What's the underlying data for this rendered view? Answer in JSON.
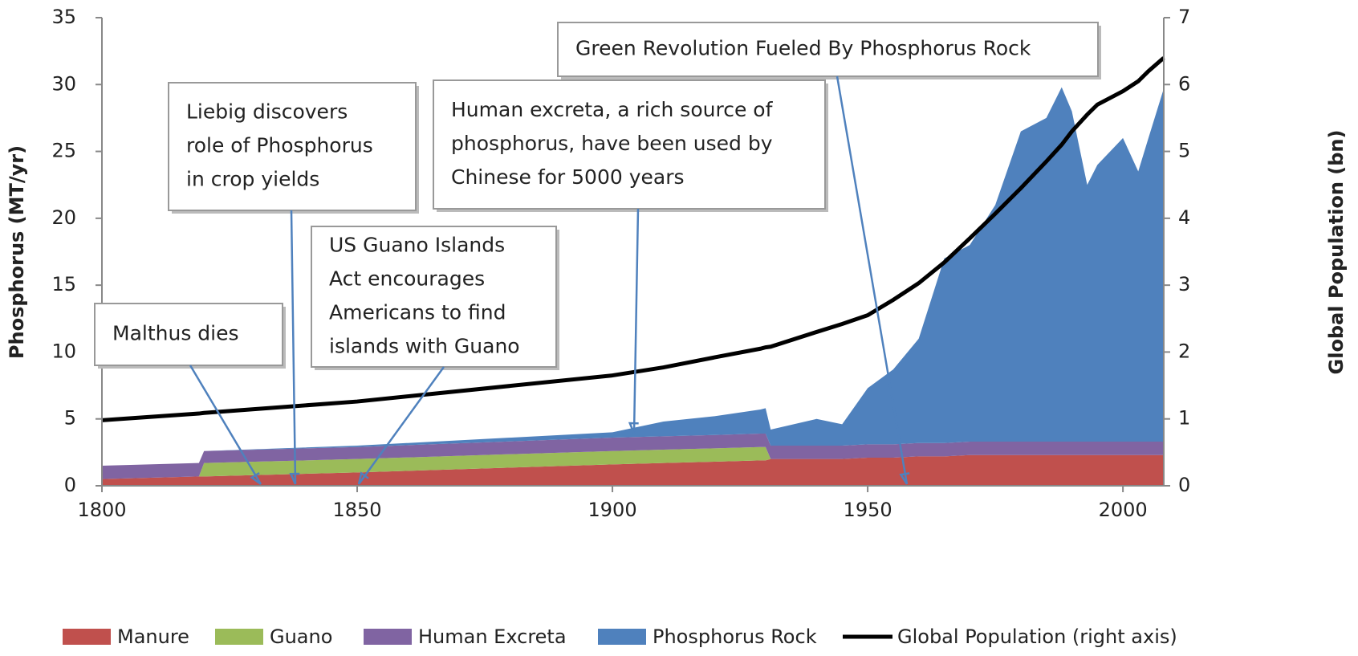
{
  "chart_data": {
    "type": "stacked-area",
    "y_label": "Phosphorus (MT/yr)",
    "y2_label": "Global Population (bn)",
    "x": [
      1800,
      1819,
      1820,
      1850,
      1900,
      1910,
      1920,
      1929,
      1930,
      1931,
      1940,
      1945,
      1950,
      1955,
      1960,
      1965,
      1970,
      1975,
      1980,
      1985,
      1988,
      1990,
      1993,
      1995,
      2000,
      2003,
      2005,
      2008
    ],
    "series": [
      {
        "name": "Manure",
        "color": "#c0504d",
        "values": [
          0.5,
          0.7,
          0.7,
          1.0,
          1.6,
          1.7,
          1.8,
          1.9,
          1.9,
          2.0,
          2.0,
          2.0,
          2.1,
          2.1,
          2.2,
          2.2,
          2.3,
          2.3,
          2.3,
          2.3,
          2.3,
          2.3,
          2.3,
          2.3,
          2.3,
          2.3,
          2.3,
          2.3
        ]
      },
      {
        "name": "Guano",
        "color": "#9bbb59",
        "values": [
          0,
          0,
          1.0,
          1.0,
          1.0,
          1.0,
          1.0,
          1.0,
          1.0,
          0,
          0,
          0,
          0,
          0,
          0,
          0,
          0,
          0,
          0,
          0,
          0,
          0,
          0,
          0,
          0,
          0,
          0,
          0
        ]
      },
      {
        "name": "Human Excreta",
        "color": "#8064a2",
        "values": [
          1.0,
          1.0,
          0.9,
          0.9,
          1.0,
          1.0,
          1.0,
          1.0,
          1.0,
          1.0,
          1.0,
          1.0,
          1.0,
          1.0,
          1.0,
          1.0,
          1.0,
          1.0,
          1.0,
          1.0,
          1.0,
          1.0,
          1.0,
          1.0,
          1.0,
          1.0,
          1.0,
          1.0
        ]
      },
      {
        "name": "Phosphorus Rock",
        "color": "#4f81bd",
        "values": [
          0,
          0,
          0,
          0.1,
          0.4,
          1.1,
          1.4,
          1.8,
          1.9,
          1.2,
          2.0,
          1.6,
          4.2,
          5.6,
          7.8,
          13.8,
          14.7,
          17.7,
          23.2,
          24.2,
          26.5,
          24.7,
          19.2,
          20.7,
          22.7,
          20.2,
          22.7,
          26.4
        ]
      },
      {
        "name": "Global Population (right axis)",
        "color": "#000000",
        "axis": "y2",
        "line": true,
        "values": [
          0.98,
          1.08,
          1.09,
          1.26,
          1.65,
          1.77,
          1.92,
          2.05,
          2.07,
          2.08,
          2.3,
          2.42,
          2.55,
          2.78,
          3.03,
          3.34,
          3.7,
          4.07,
          4.45,
          4.85,
          5.1,
          5.3,
          5.55,
          5.7,
          5.9,
          6.05,
          6.2,
          6.4
        ]
      }
    ],
    "xlim": [
      1800,
      2008
    ],
    "xticks": [
      1800,
      1850,
      1900,
      1950,
      2000
    ],
    "ylim": [
      0,
      35
    ],
    "yticks": [
      0,
      5,
      10,
      15,
      20,
      25,
      30,
      35
    ],
    "y2lim": [
      0,
      7
    ],
    "y2ticks": [
      0,
      1,
      2,
      3,
      4,
      5,
      6,
      7
    ],
    "legend": "bottom",
    "annotations": [
      {
        "lines": [
          "Malthus dies"
        ]
      },
      {
        "lines": [
          "Liebig discovers",
          "role of Phosphorus",
          "in crop yields"
        ]
      },
      {
        "lines": [
          "US Guano Islands",
          "Act  encourages",
          "Americans to find",
          "islands with Guano"
        ]
      },
      {
        "lines": [
          "Human excreta, a rich source of",
          "phosphorus, have been used by",
          "Chinese for 5000 years"
        ]
      },
      {
        "lines": [
          "Green Revolution Fueled By Phosphorus Rock"
        ]
      }
    ]
  }
}
